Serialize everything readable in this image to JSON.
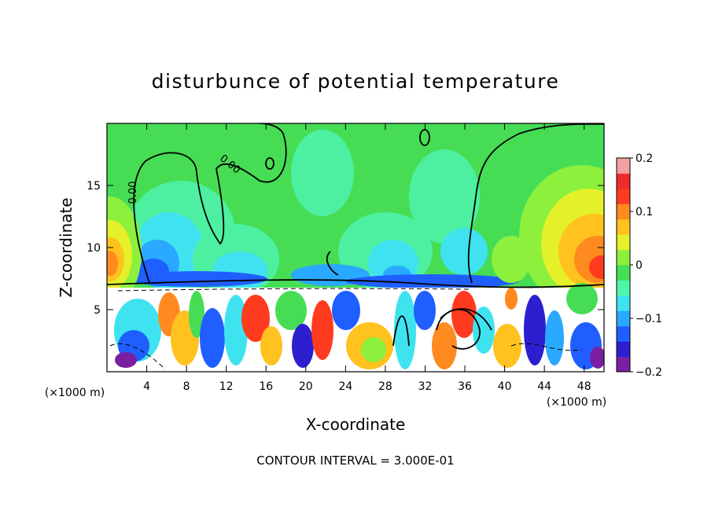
{
  "chart_data": {
    "type": "heatmap",
    "title": "disturbunce of potential temperature",
    "xlabel": "X-coordinate",
    "ylabel": "Z-coordinate",
    "x_unit_label": "(×1000 m)",
    "x_unit_label_right": "(×1000 m)",
    "xlim": [
      0,
      50
    ],
    "ylim": [
      0,
      20
    ],
    "x_ticks": [
      "4",
      "8",
      "12",
      "16",
      "20",
      "24",
      "28",
      "32",
      "36",
      "40",
      "44",
      "48"
    ],
    "x_tick_values": [
      4,
      8,
      12,
      16,
      20,
      24,
      28,
      32,
      36,
      40,
      44,
      48
    ],
    "y_ticks": [
      "5",
      "10",
      "15"
    ],
    "y_tick_values": [
      5,
      10,
      15
    ],
    "colorbar": {
      "range": [
        -0.2,
        0.2
      ],
      "tick_labels": [
        "0.2",
        "0.1",
        "0",
        "−0.1",
        "−0.2"
      ],
      "tick_values": [
        0.2,
        0.1,
        0,
        -0.1,
        -0.2
      ],
      "colors": [
        "#7a1fa2",
        "#2b1fd0",
        "#1f5fff",
        "#29a9ff",
        "#3fe3f0",
        "#4ff5a8",
        "#45e055",
        "#8cf03c",
        "#e4f02a",
        "#ffc21f",
        "#ff8a1f",
        "#ff3b1f",
        "#ee2c2c",
        "#f5a0a0"
      ]
    },
    "contour_labels": [
      "0.00",
      "0.00"
    ],
    "contour_interval_text": "CONTOUR INTERVAL = 3.000E-01",
    "grid": false
  }
}
